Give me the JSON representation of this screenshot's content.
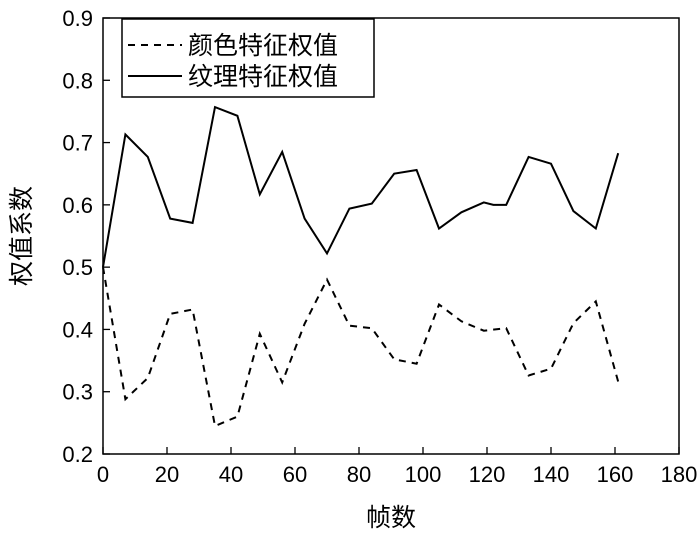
{
  "chart_data": {
    "type": "line",
    "xlabel": "帧数",
    "ylabel": "权值系数",
    "xlim": [
      0,
      180
    ],
    "ylim": [
      0.2,
      0.9
    ],
    "xticks": [
      0,
      20,
      40,
      60,
      80,
      100,
      120,
      140,
      160,
      180
    ],
    "yticks": [
      0.2,
      0.3,
      0.4,
      0.5,
      0.6,
      0.7,
      0.8,
      0.9
    ],
    "xtick_labels": [
      "0",
      "20",
      "40",
      "60",
      "80",
      "100",
      "120",
      "140",
      "160",
      "180"
    ],
    "ytick_labels": [
      "0.2",
      "0.3",
      "0.4",
      "0.5",
      "0.6",
      "0.7",
      "0.8",
      "0.9"
    ],
    "grid": false,
    "legend_position": "top-left",
    "series": [
      {
        "name": "颜色特征权值",
        "style": "dashed",
        "color": "#000000",
        "x": [
          0,
          7,
          14,
          21,
          28,
          35,
          42,
          49,
          56,
          63,
          70,
          77,
          84,
          91,
          98,
          105,
          112,
          119,
          126,
          133,
          140,
          147,
          154,
          161
        ],
        "y": [
          0.5,
          0.288,
          0.322,
          0.425,
          0.432,
          0.245,
          0.26,
          0.393,
          0.315,
          0.409,
          0.48,
          0.406,
          0.402,
          0.352,
          0.345,
          0.44,
          0.413,
          0.398,
          0.402,
          0.326,
          0.337,
          0.41,
          0.445,
          0.316
        ]
      },
      {
        "name": "纹理特征权值",
        "style": "solid",
        "color": "#000000",
        "x": [
          0,
          7,
          14,
          21,
          28,
          35,
          42,
          49,
          56,
          63,
          70,
          77,
          84,
          91,
          98,
          105,
          112,
          119,
          122,
          126,
          133,
          140,
          147,
          154,
          161
        ],
        "y": [
          0.5,
          0.713,
          0.677,
          0.578,
          0.571,
          0.757,
          0.743,
          0.617,
          0.685,
          0.578,
          0.522,
          0.594,
          0.602,
          0.65,
          0.656,
          0.562,
          0.588,
          0.604,
          0.6,
          0.6,
          0.677,
          0.666,
          0.59,
          0.562,
          0.683
        ]
      }
    ]
  }
}
